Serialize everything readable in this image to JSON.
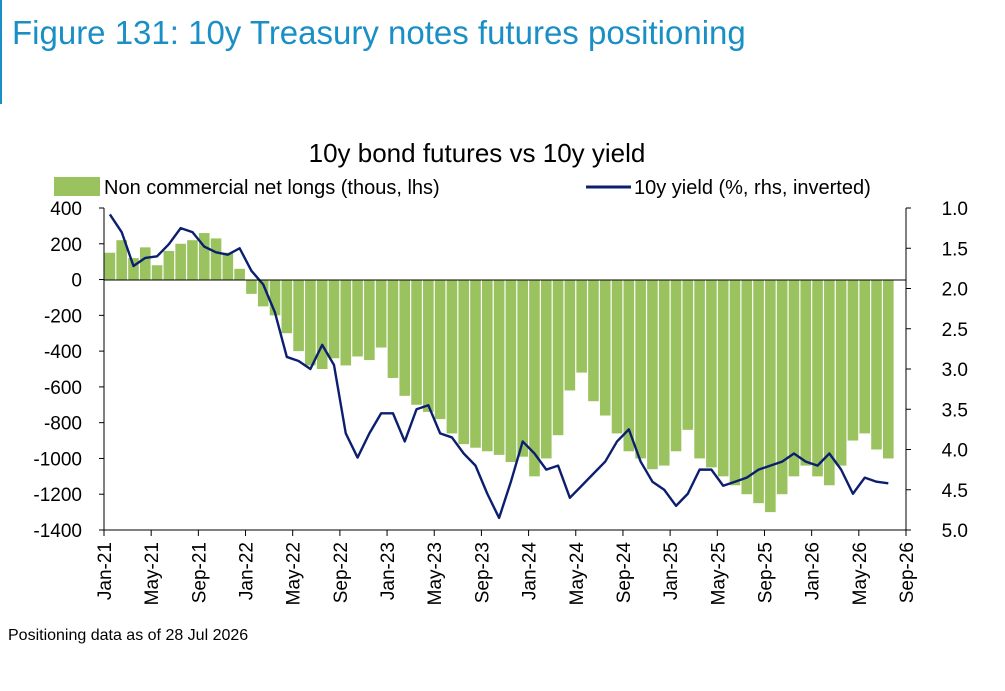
{
  "figure_title": "Figure 131: 10y Treasury notes futures positioning",
  "footnote": "Positioning data as of 28 Jul 2026",
  "colors": {
    "title": "#1a8fc6",
    "bars": "#9ac360",
    "line": "#0c1f6e"
  },
  "chart_data": {
    "type": "bar+line",
    "title": "10y bond futures vs 10y yield",
    "legend_position": "top",
    "grid": false,
    "x_ticks": [
      "Jan-21",
      "May-21",
      "Sep-21",
      "Jan-22",
      "May-22",
      "Sep-22",
      "Jan-23",
      "May-23",
      "Sep-23",
      "Jan-24",
      "May-24",
      "Sep-24",
      "Jan-25",
      "May-25",
      "Sep-25",
      "Jan-26",
      "May-26",
      "Sep-26"
    ],
    "x_range": [
      "2021-01",
      "2026-09"
    ],
    "y_left": {
      "ticks": [
        "400",
        "200",
        "0",
        "-200",
        "-400",
        "-600",
        "-800",
        "-1000",
        "-1200",
        "-1400"
      ],
      "range": [
        -1400,
        400
      ]
    },
    "y_right": {
      "ticks": [
        "1.0",
        "1.5",
        "2.0",
        "2.5",
        "3.0",
        "3.5",
        "4.0",
        "4.5",
        "5.0"
      ],
      "range": [
        1.0,
        5.0
      ],
      "inverted": true
    },
    "series": [
      {
        "name": "Non commercial net longs (thous, lhs)",
        "type": "bar",
        "axis": "left",
        "x": [
          "2021-01",
          "2021-02",
          "2021-03",
          "2021-04",
          "2021-05",
          "2021-06",
          "2021-07",
          "2021-08",
          "2021-09",
          "2021-10",
          "2021-11",
          "2021-12",
          "2022-01",
          "2022-02",
          "2022-03",
          "2022-04",
          "2022-05",
          "2022-06",
          "2022-07",
          "2022-08",
          "2022-09",
          "2022-10",
          "2022-11",
          "2022-12",
          "2023-01",
          "2023-02",
          "2023-03",
          "2023-04",
          "2023-05",
          "2023-06",
          "2023-07",
          "2023-08",
          "2023-09",
          "2023-10",
          "2023-11",
          "2023-12",
          "2024-01",
          "2024-02",
          "2024-03",
          "2024-04",
          "2024-05",
          "2024-06",
          "2024-07",
          "2024-08",
          "2024-09",
          "2024-10",
          "2024-11",
          "2024-12",
          "2025-01",
          "2025-02",
          "2025-03",
          "2025-04",
          "2025-05",
          "2025-06",
          "2025-07",
          "2025-08",
          "2025-09",
          "2025-10",
          "2025-11",
          "2025-12",
          "2026-01",
          "2026-02",
          "2026-03",
          "2026-04",
          "2026-05",
          "2026-06",
          "2026-07"
        ],
        "values": [
          150,
          220,
          120,
          180,
          80,
          160,
          200,
          220,
          260,
          230,
          150,
          60,
          -80,
          -150,
          -200,
          -300,
          -400,
          -480,
          -500,
          -440,
          -480,
          -430,
          -450,
          -380,
          -550,
          -650,
          -700,
          -740,
          -780,
          -860,
          -920,
          -940,
          -960,
          -980,
          -1020,
          -990,
          -1100,
          -1000,
          -870,
          -620,
          -520,
          -680,
          -760,
          -860,
          -960,
          -1000,
          -1060,
          -1040,
          -960,
          -840,
          -1000,
          -1050,
          -1100,
          -1150,
          -1200,
          -1250,
          -1300,
          -1200,
          -1100,
          -1040,
          -1100,
          -1150,
          -1040,
          -900,
          -860,
          -950,
          -1000
        ]
      },
      {
        "name": "10y yield (%, rhs, inverted)",
        "type": "line",
        "axis": "right",
        "x": [
          "2021-01",
          "2021-02",
          "2021-03",
          "2021-04",
          "2021-05",
          "2021-06",
          "2021-07",
          "2021-08",
          "2021-09",
          "2021-10",
          "2021-11",
          "2021-12",
          "2022-01",
          "2022-02",
          "2022-03",
          "2022-04",
          "2022-05",
          "2022-06",
          "2022-07",
          "2022-08",
          "2022-09",
          "2022-10",
          "2022-11",
          "2022-12",
          "2023-01",
          "2023-02",
          "2023-03",
          "2023-04",
          "2023-05",
          "2023-06",
          "2023-07",
          "2023-08",
          "2023-09",
          "2023-10",
          "2023-11",
          "2023-12",
          "2024-01",
          "2024-02",
          "2024-03",
          "2024-04",
          "2024-05",
          "2024-06",
          "2024-07",
          "2024-08",
          "2024-09",
          "2024-10",
          "2024-11",
          "2024-12",
          "2025-01",
          "2025-02",
          "2025-03",
          "2025-04",
          "2025-05",
          "2025-06",
          "2025-07",
          "2025-08",
          "2025-09",
          "2025-10",
          "2025-11",
          "2025-12",
          "2026-01",
          "2026-02",
          "2026-03",
          "2026-04",
          "2026-05",
          "2026-06",
          "2026-07"
        ],
        "values": [
          1.08,
          1.3,
          1.72,
          1.62,
          1.6,
          1.45,
          1.25,
          1.3,
          1.48,
          1.55,
          1.58,
          1.5,
          1.78,
          1.95,
          2.3,
          2.85,
          2.9,
          3.0,
          2.7,
          2.95,
          3.8,
          4.1,
          3.8,
          3.55,
          3.55,
          3.9,
          3.5,
          3.45,
          3.8,
          3.85,
          4.05,
          4.2,
          4.55,
          4.85,
          4.4,
          3.9,
          4.05,
          4.25,
          4.2,
          4.6,
          4.45,
          4.3,
          4.15,
          3.9,
          3.75,
          4.15,
          4.4,
          4.5,
          4.7,
          4.55,
          4.25,
          4.25,
          4.45,
          4.4,
          4.35,
          4.25,
          4.2,
          4.15,
          4.05,
          4.15,
          4.2,
          4.05,
          4.25,
          4.55,
          4.35,
          4.4,
          4.42
        ]
      }
    ]
  }
}
